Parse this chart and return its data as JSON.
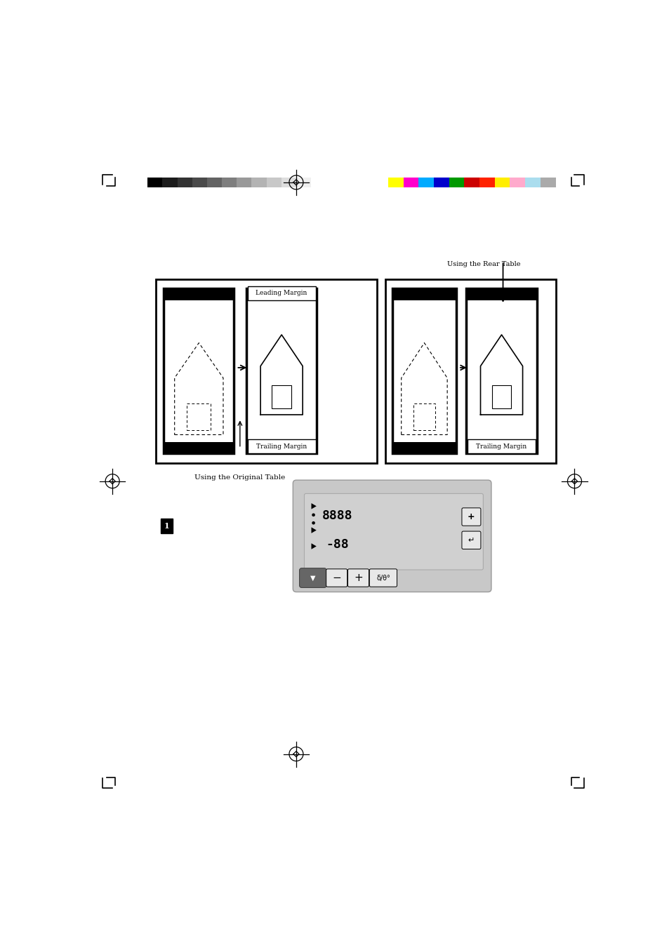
{
  "bg_color": "#ffffff",
  "page_width": 9.54,
  "page_height": 13.51,
  "color_bar_left_colors": [
    "#000000",
    "#1c1c1c",
    "#333333",
    "#4a4a4a",
    "#636363",
    "#7e7e7e",
    "#999999",
    "#b3b3b3",
    "#c8c8c8",
    "#dedede",
    "#f0f0f0",
    "#ffffff"
  ],
  "color_bar_right_colors": [
    "#ffff00",
    "#ff00cc",
    "#00aaff",
    "#0000cc",
    "#009900",
    "#cc0000",
    "#ff2200",
    "#ffee00",
    "#ffaacc",
    "#aaddee",
    "#aaaaaa"
  ],
  "label_using_rear": "Using the Rear Table",
  "label_leading_margin": "Leading Margin",
  "label_trailing_margin_left": "Trailing Margin",
  "label_trailing_margin_right": "Trailing Margin",
  "label_using_original": "Using the Original Table",
  "step_number": "1",
  "panel_bg": "#c8c8c8",
  "panel_disp_bg": "#d0d0d0",
  "btn_light": "#e8e8e8",
  "btn_dark": "#666666"
}
